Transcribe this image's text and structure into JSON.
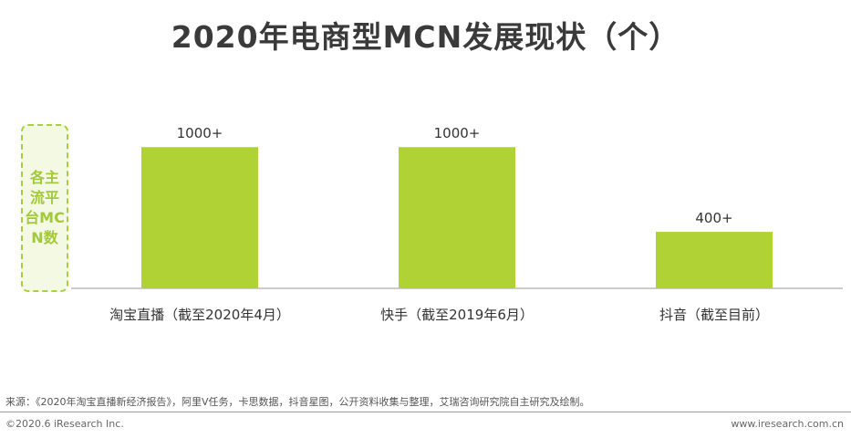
{
  "title": "2020年电商型MCN发展现状（个）",
  "ylabel": "各主流平台MCN数",
  "chart_data": {
    "type": "bar",
    "title": "2020年电商型MCN发展现状（个）",
    "ylabel": "各主流平台MCN数",
    "categories": [
      "淘宝直播（截至2020年4月）",
      "快手（截至2019年6月）",
      "抖音（截至目前）"
    ],
    "values": [
      1000,
      1000,
      400
    ],
    "data_labels": [
      "1000+",
      "1000+",
      "400+"
    ],
    "ylim": [
      0,
      1150
    ],
    "grid": false,
    "bar_color": "#b0d235"
  },
  "source": "来源：《2020年淘宝直播新经济报告》，阿里V任务，卡思数据，抖音星图，公开资料收集与整理，艾瑞咨询研究院自主研究及绘制。",
  "copyright": "©2020.6 iResearch Inc.",
  "website": "www.iresearch.com.cn"
}
